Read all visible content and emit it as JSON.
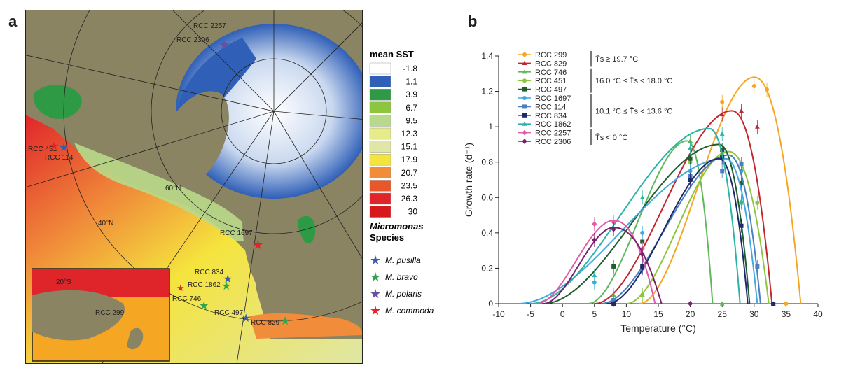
{
  "panels": {
    "a": "a",
    "b": "b"
  },
  "map": {
    "sst_title": "mean SST",
    "sst_bins": [
      {
        "label": "-1.8",
        "color": "#ffffff"
      },
      {
        "label": "1.1",
        "color": "#2f5fb7"
      },
      {
        "label": "3.9",
        "color": "#2e9a45"
      },
      {
        "label": "6.7",
        "color": "#8cc63f"
      },
      {
        "label": "9.5",
        "color": "#b9d98a"
      },
      {
        "label": "12.3",
        "color": "#e6eb8c"
      },
      {
        "label": "15.1",
        "color": "#dfe6a6"
      },
      {
        "label": "17.9",
        "color": "#f5e43d"
      },
      {
        "label": "20.7",
        "color": "#f08c3a"
      },
      {
        "label": "23.5",
        "color": "#e8572a"
      },
      {
        "label": "26.3",
        "color": "#e0252a"
      },
      {
        "label": "30",
        "color": "#d7191c"
      }
    ],
    "species_title": "Micromonas",
    "species_subtitle": "Species",
    "species": [
      {
        "name": "M. pusilla",
        "color": "#3b5bab"
      },
      {
        "name": "M. bravo",
        "color": "#2ea44f"
      },
      {
        "name": "M. polaris",
        "color": "#6a4fa0"
      },
      {
        "name": "M. commoda",
        "color": "#e0252a"
      }
    ],
    "lat_labels": [
      "60°N",
      "40°N",
      "20°S"
    ],
    "strains": {
      "rcc2257": "RCC 2257",
      "rcc2306": "RCC 2306",
      "rcc451": "RCC 451",
      "rcc114": "RCC 114",
      "rcc1697": "RCC 1697",
      "rcc834": "RCC 834",
      "rcc1862": "RCC 1862",
      "rcc746": "RCC 746",
      "rcc497": "RCC 497",
      "rcc829": "RCC 829",
      "rcc299": "RCC 299"
    }
  },
  "chart_data": {
    "type": "line",
    "xlabel": "Temperature (°C)",
    "ylabel": "Growth rate (d⁻¹)",
    "xlim": [
      -10,
      40
    ],
    "ylim": [
      0,
      1.4
    ],
    "xticks": [
      -10,
      -5,
      0,
      5,
      10,
      15,
      20,
      25,
      30,
      35,
      40
    ],
    "yticks": [
      0,
      0.2,
      0.4,
      0.6,
      0.8,
      1,
      1.2,
      1.4
    ],
    "ytick_labels": [
      "0",
      "0.2",
      "0.4",
      "0.6",
      "0.8",
      "1",
      "1.2",
      "1.4"
    ],
    "groups": [
      {
        "label": "T̄s ≥ 19.7 °C",
        "series": [
          0,
          1
        ]
      },
      {
        "label": "16.0 °C ≤ T̄s < 18.0 °C",
        "series": [
          2,
          3,
          4
        ]
      },
      {
        "label": "10.1 °C ≤ T̄s < 13.6 °C",
        "series": [
          5,
          6,
          7,
          8
        ]
      },
      {
        "label": "T̄s < 0 °C",
        "series": [
          9,
          10
        ]
      }
    ],
    "series": [
      {
        "name": "RCC 299",
        "color": "#f5a623",
        "marker": "circle",
        "points": [
          [
            25,
            1.14
          ],
          [
            30,
            1.23
          ],
          [
            32,
            1.21
          ],
          [
            35,
            0
          ]
        ],
        "curve": [
          [
            12,
            0
          ],
          [
            30.0,
            1.28
          ],
          [
            37.3,
            0
          ]
        ]
      },
      {
        "name": "RCC 829",
        "color": "#c1272d",
        "marker": "triangle",
        "points": [
          [
            25,
            1.07
          ],
          [
            28,
            1.09
          ],
          [
            30.5,
            1.0
          ],
          [
            33,
            0
          ]
        ],
        "curve": [
          [
            5,
            0
          ],
          [
            26.5,
            1.09
          ],
          [
            32.8,
            0
          ]
        ]
      },
      {
        "name": "RCC 746",
        "color": "#5fb85a",
        "marker": "triangle",
        "points": [
          [
            8,
            0.05
          ],
          [
            12.5,
            0.05
          ],
          [
            20,
            0.92
          ],
          [
            25,
            0
          ],
          [
            28,
            0.58
          ]
        ],
        "curve": [
          [
            4,
            0
          ],
          [
            19.5,
            0.92
          ],
          [
            23.5,
            0
          ]
        ]
      },
      {
        "name": "RCC 451",
        "color": "#8cc63f",
        "marker": "circle",
        "points": [
          [
            12.5,
            0.05
          ],
          [
            20,
            0.8
          ],
          [
            25,
            0.85
          ],
          [
            28,
            0.75
          ],
          [
            30.5,
            0.57
          ]
        ],
        "curve": [
          [
            10,
            0
          ],
          [
            26.0,
            0.86
          ],
          [
            32.3,
            0
          ]
        ]
      },
      {
        "name": "RCC 497",
        "color": "#1f5c2e",
        "marker": "square",
        "points": [
          [
            8,
            0.21
          ],
          [
            12.5,
            0.35
          ],
          [
            20,
            0.82
          ],
          [
            25,
            0.87
          ],
          [
            28,
            0.68
          ]
        ],
        "curve": [
          [
            -3,
            0
          ],
          [
            24.5,
            0.9
          ],
          [
            29.3,
            0
          ]
        ]
      },
      {
        "name": "RCC 1697",
        "color": "#3fa9e0",
        "marker": "circle",
        "points": [
          [
            5,
            0.12
          ],
          [
            12.5,
            0.4
          ],
          [
            20,
            0.75
          ],
          [
            25,
            0.82
          ],
          [
            28,
            0.75
          ]
        ],
        "curve": [
          [
            -7,
            0
          ],
          [
            25.5,
            0.82
          ],
          [
            30.5,
            0
          ]
        ]
      },
      {
        "name": "RCC 114",
        "color": "#4a7fc1",
        "marker": "square",
        "points": [
          [
            8,
            0.02
          ],
          [
            12.5,
            0.2
          ],
          [
            20,
            0.72
          ],
          [
            25,
            0.75
          ],
          [
            28,
            0.79
          ],
          [
            30.5,
            0.21
          ]
        ],
        "curve": [
          [
            6,
            0
          ],
          [
            26.0,
            0.84
          ],
          [
            31.0,
            0
          ]
        ]
      },
      {
        "name": "RCC 834",
        "color": "#1c2a6b",
        "marker": "square",
        "points": [
          [
            8,
            0
          ],
          [
            12.5,
            0.21
          ],
          [
            20,
            0.7
          ],
          [
            25,
            0.83
          ],
          [
            28,
            0.44
          ],
          [
            33,
            0
          ]
        ],
        "curve": [
          [
            7,
            0
          ],
          [
            24.5,
            0.82
          ],
          [
            29.0,
            0
          ]
        ]
      },
      {
        "name": "RCC 1862",
        "color": "#2ab3a6",
        "marker": "triangle",
        "points": [
          [
            5,
            0.16
          ],
          [
            12.5,
            0.6
          ],
          [
            20,
            0.88
          ],
          [
            25,
            0.96
          ],
          [
            28,
            0.57
          ]
        ],
        "curve": [
          [
            -5,
            0
          ],
          [
            23.0,
            0.99
          ],
          [
            27.8,
            0
          ]
        ]
      },
      {
        "name": "RCC 2257",
        "color": "#e15ca8",
        "marker": "diamond",
        "points": [
          [
            5,
            0.45
          ],
          [
            8,
            0.46
          ],
          [
            12.5,
            0.31
          ]
        ],
        "curve": [
          [
            -4,
            0
          ],
          [
            8.0,
            0.47
          ],
          [
            14.5,
            0
          ]
        ]
      },
      {
        "name": "RCC 2306",
        "color": "#7a1f6e",
        "marker": "diamond",
        "points": [
          [
            5,
            0.36
          ],
          [
            8,
            0.42
          ],
          [
            12.5,
            0.28
          ],
          [
            20,
            0
          ]
        ],
        "curve": [
          [
            -3,
            0
          ],
          [
            8.0,
            0.43
          ],
          [
            15.5,
            0
          ]
        ]
      }
    ]
  }
}
